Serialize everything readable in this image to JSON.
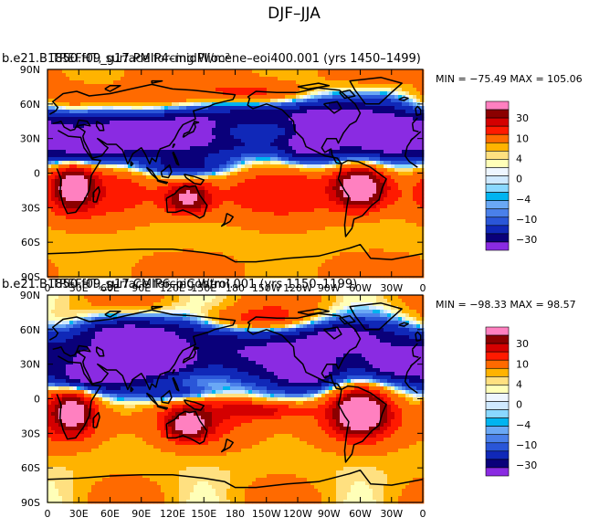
{
  "figure": {
    "title": "DJF–JJA"
  },
  "colors": {
    "levels": [
      "#8a2be2",
      "#0a007a",
      "#1028b8",
      "#2a56d8",
      "#4a80ea",
      "#6aa8f5",
      "#00b4f0",
      "#8ad8ff",
      "#cfe9ff",
      "#eef6ff",
      "#ffffb8",
      "#ffe080",
      "#ffb300",
      "#ff6a00",
      "#ff1a00",
      "#d40000",
      "#8b0000",
      "#ff80c0"
    ],
    "land_outline": "#000000"
  },
  "chart_data": [
    {
      "type": "heatmap",
      "panel": "top",
      "title_overlaid": [
        "b.e21.B1850.f09_g17.PMIP4–midPliocene–eoi400.001 (yrs 1450–1499)",
        "TREFHT, surface forcing W/m²"
      ],
      "stats": {
        "min_label": "MIN =",
        "min": "−75.49",
        "max_label": "MAX =",
        "max": "105.06"
      },
      "x_ticks": [
        "0",
        "30E",
        "60E",
        "90E",
        "120E",
        "150E",
        "180",
        "150W",
        "120W",
        "90W",
        "60W",
        "30W",
        "0"
      ],
      "y_ticks": [
        "90N",
        "60N",
        "30N",
        "0",
        "30S",
        "60S",
        "90S"
      ],
      "colorbar_labels": [
        "30",
        "10",
        "4",
        "0",
        "−4",
        "−10",
        "−30"
      ]
    },
    {
      "type": "heatmap",
      "panel": "bottom",
      "title_overlaid": [
        "b.e21.B1850.f09_g17.CMIP6–piControl.001 (yrs 1150–1199)",
        "TREFHT, surface forcing W/m²"
      ],
      "stats": {
        "min_label": "MIN =",
        "min": "−98.33",
        "max_label": "MAX =",
        "max": "98.57"
      },
      "x_ticks": [
        "0",
        "30E",
        "60E",
        "90E",
        "120E",
        "150E",
        "180",
        "150W",
        "120W",
        "90W",
        "60W",
        "30W",
        "0"
      ],
      "y_ticks": [
        "90N",
        "60N",
        "30N",
        "0",
        "30S",
        "60S",
        "90S"
      ],
      "colorbar_labels": [
        "30",
        "10",
        "4",
        "0",
        "−4",
        "−10",
        "−30"
      ]
    }
  ]
}
